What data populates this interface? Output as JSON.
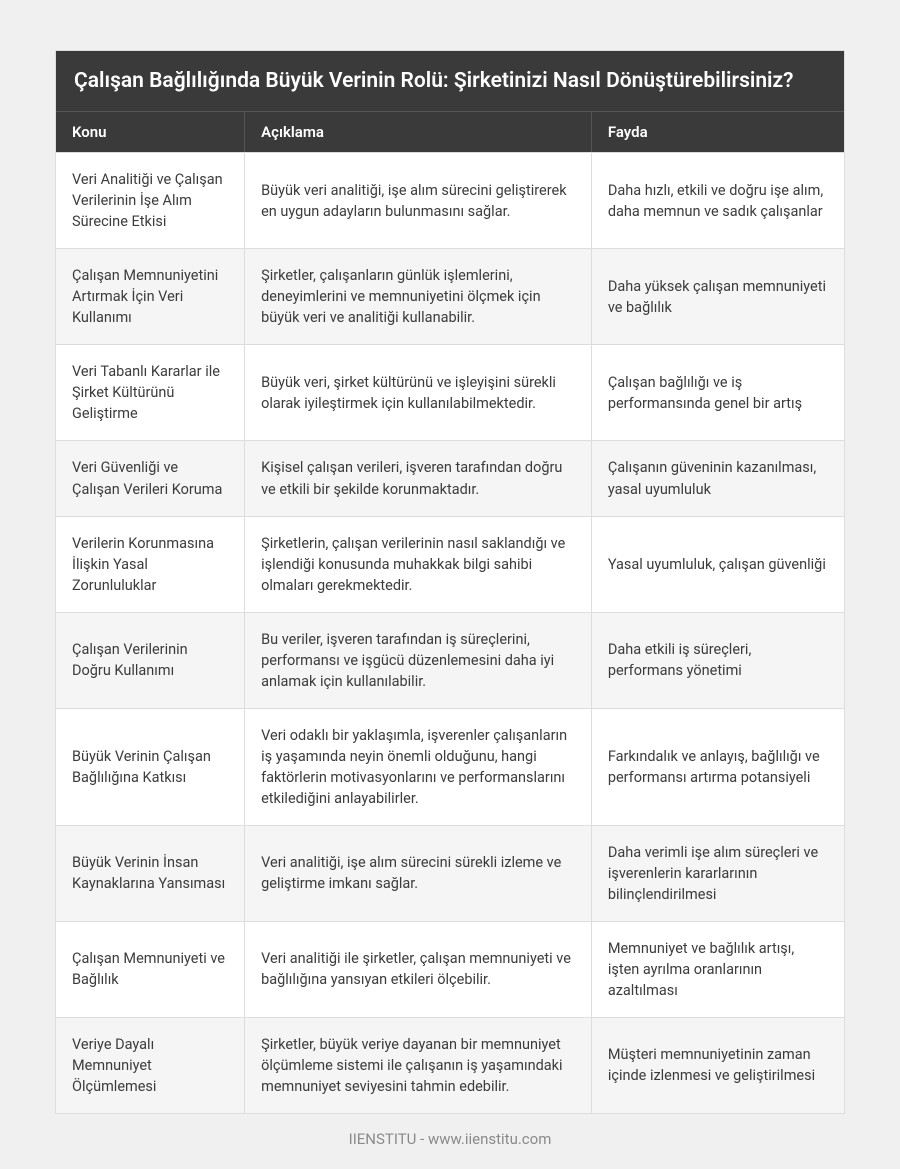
{
  "title": "Çalışan Bağlılığında Büyük Verinin Rolü: Şirketinizi Nasıl Dönüştürebilirsiniz?",
  "columns": {
    "c1": "Konu",
    "c2": "Açıklama",
    "c3": "Fayda"
  },
  "rows": [
    {
      "topic": "Veri Analitiği ve Çalışan Verilerinin İşe Alım Sürecine Etkisi",
      "desc": "Büyük veri analitiği, işe alım sürecini geliştirerek en uygun adayların bulunmasını sağlar.",
      "benefit": "Daha hızlı, etkili ve doğru işe alım, daha memnun ve sadık çalışanlar"
    },
    {
      "topic": "Çalışan Memnuniyetini Artırmak İçin Veri Kullanımı",
      "desc": "Şirketler, çalışanların günlük işlemlerini, deneyimlerini ve memnuniyetini ölçmek için büyük veri ve analitiği kullanabilir.",
      "benefit": "Daha yüksek çalışan memnuniyeti ve bağlılık"
    },
    {
      "topic": "Veri Tabanlı Kararlar ile Şirket Kültürünü Geliştirme",
      "desc": "Büyük veri, şirket kültürünü ve işleyişini sürekli olarak iyileştirmek için kullanılabilmektedir.",
      "benefit": "Çalışan bağlılığı ve iş performansında genel bir artış"
    },
    {
      "topic": "Veri Güvenliği ve Çalışan Verileri Koruma",
      "desc": "Kişisel çalışan verileri, işveren tarafından doğru ve etkili bir şekilde korunmaktadır.",
      "benefit": "Çalışanın güveninin kazanılması, yasal uyumluluk"
    },
    {
      "topic": "Verilerin Korunmasına İlişkin Yasal Zorunluluklar",
      "desc": "Şirketlerin, çalışan verilerinin nasıl saklandığı ve işlendiği konusunda muhakkak bilgi sahibi olmaları gerekmektedir.",
      "benefit": "Yasal uyumluluk, çalışan güvenliği"
    },
    {
      "topic": "Çalışan Verilerinin Doğru Kullanımı",
      "desc": "Bu veriler, işveren tarafından iş süreçlerini, performansı ve işgücü düzenlemesini daha iyi anlamak için kullanılabilir.",
      "benefit": "Daha etkili iş süreçleri, performans yönetimi"
    },
    {
      "topic": "Büyük Verinin Çalışan Bağlılığına Katkısı",
      "desc": "Veri odaklı bir yaklaşımla, işverenler çalışanların iş yaşamında neyin önemli olduğunu, hangi faktörlerin motivasyonlarını ve performanslarını etkilediğini anlayabilirler.",
      "benefit": "Farkındalık ve anlayış, bağlılığı ve performansı artırma potansiyeli"
    },
    {
      "topic": "Büyük Verinin İnsan Kaynaklarına Yansıması",
      "desc": "Veri analitiği, işe alım sürecini sürekli izleme ve geliştirme imkanı sağlar.",
      "benefit": "Daha verimli işe alım süreçleri ve işverenlerin kararlarının bilinçlendirilmesi"
    },
    {
      "topic": "Çalışan Memnuniyeti ve Bağlılık",
      "desc": "Veri analitiği ile şirketler, çalışan memnuniyeti ve bağlılığına yansıyan etkileri ölçebilir.",
      "benefit": "Memnuniyet ve bağlılık artışı, işten ayrılma oranlarının azaltılması"
    },
    {
      "topic": "Veriye Dayalı Memnuniyet Ölçümlemesi",
      "desc": "Şirketler, büyük veriye dayanan bir memnuniyet ölçümleme sistemi ile çalışanın iş yaşamındaki memnuniyet seviyesini tahmin edebilir.",
      "benefit": "Müşteri memnuniyetinin zaman içinde izlenmesi ve geliştirilmesi"
    }
  ],
  "footer": "IIENSTITU - www.iienstitu.com",
  "colors": {
    "header_bg": "#3a3a3a",
    "header_text": "#ffffff",
    "row_even_bg": "#f5f5f5",
    "row_odd_bg": "#ffffff",
    "border": "#dddddd",
    "text": "#3c3c3c",
    "page_bg": "#f0f0f0",
    "footer_text": "#8a8a8a"
  },
  "layout": {
    "col_widths_pct": [
      24,
      44,
      32
    ],
    "title_fontsize": 21,
    "header_fontsize": 15,
    "cell_fontsize": 14.5
  }
}
